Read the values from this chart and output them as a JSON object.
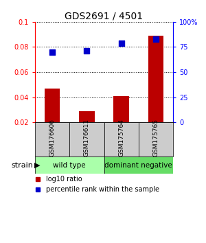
{
  "title": "GDS2691 / 4501",
  "samples": [
    "GSM176606",
    "GSM176611",
    "GSM175764",
    "GSM175765"
  ],
  "log10_ratio": [
    0.047,
    0.029,
    0.041,
    0.089
  ],
  "percentile_rank": [
    0.7,
    0.71,
    0.79,
    0.83
  ],
  "bar_color": "#bb0000",
  "dot_color": "#0000cc",
  "ylim_left": [
    0.02,
    0.1
  ],
  "ylim_right": [
    0.0,
    1.0
  ],
  "yticks_left": [
    0.02,
    0.04,
    0.06,
    0.08,
    0.1
  ],
  "groups": [
    {
      "label": "wild type",
      "color": "#aaffaa",
      "samples": [
        0,
        1
      ]
    },
    {
      "label": "dominant negative",
      "color": "#66dd66",
      "samples": [
        2,
        3
      ]
    }
  ],
  "strain_label": "strain",
  "legend_bar_label": "log10 ratio",
  "legend_dot_label": "percentile rank within the sample",
  "bg_color": "#ffffff",
  "label_area_color": "#cccccc",
  "figure_width": 3.0,
  "figure_height": 3.54,
  "dpi": 100
}
